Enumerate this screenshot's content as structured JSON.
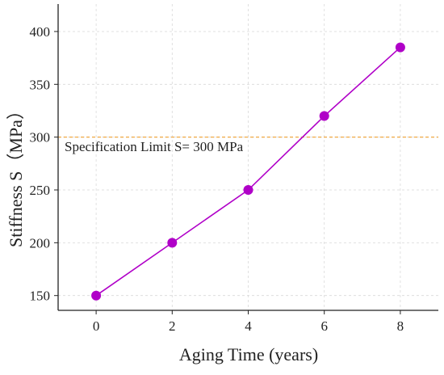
{
  "chart_data": {
    "type": "line",
    "xlabel": "Aging Time (years)",
    "ylabel": "Stiffness S（MPa）",
    "xlim": [
      -1.0,
      9.0
    ],
    "ylim": [
      136,
      426
    ],
    "x_ticks": [
      0,
      2,
      4,
      6,
      8
    ],
    "y_ticks": [
      150,
      200,
      250,
      300,
      350,
      400
    ],
    "grid": true,
    "series": [
      {
        "x": [
          0,
          2,
          4,
          6,
          8
        ],
        "values": [
          150,
          200,
          250,
          320,
          385
        ],
        "color": "#b000c8",
        "marker": "circle"
      }
    ],
    "reference_line": {
      "y": 300,
      "color": "#f0a030",
      "style": "dashed",
      "label": "Specification Limit S= 300 MPa"
    }
  }
}
